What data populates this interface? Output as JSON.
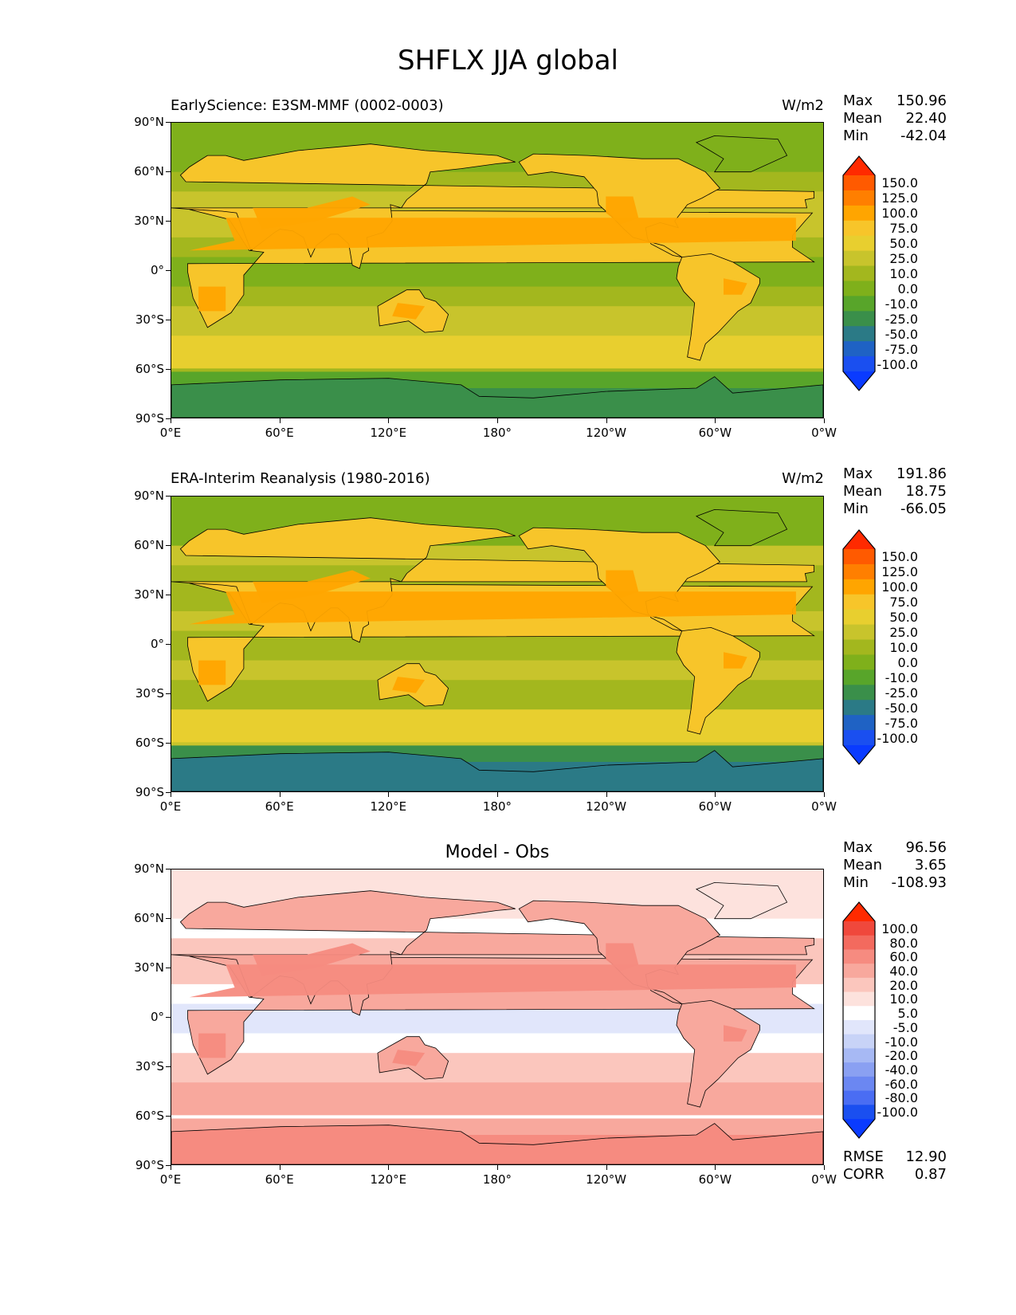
{
  "figure_title": "SHFLX JJA global",
  "panels": [
    {
      "left_title": "EarlyScience: E3SM-MMF (0002-0003)",
      "right_title": "W/m2",
      "center_title": "",
      "stats": [
        {
          "label": "Max",
          "value": "150.96"
        },
        {
          "label": "Mean",
          "value": "22.40"
        },
        {
          "label": "Min",
          "value": "-42.04"
        }
      ],
      "colorbar": {
        "labels": [
          "150.0",
          "125.0",
          "100.0",
          "75.0",
          "50.0",
          "25.0",
          "10.0",
          "0.0",
          "-10.0",
          "-25.0",
          "-50.0",
          "-75.0",
          "-100.0"
        ],
        "colors": [
          "#ff2a00",
          "#ff5a00",
          "#ff7f00",
          "#ffa500",
          "#f7c52a",
          "#e8cf2f",
          "#c8c42c",
          "#a3b71e",
          "#7fb01b",
          "#58a52a",
          "#3a8f4a",
          "#2b7a86",
          "#1f62c4",
          "#1a4ff0",
          "#0a3bff"
        ]
      },
      "map_style": "model"
    },
    {
      "left_title": "ERA-Interim Reanalysis (1980-2016)",
      "right_title": "W/m2",
      "center_title": "",
      "stats": [
        {
          "label": "Max",
          "value": "191.86"
        },
        {
          "label": "Mean",
          "value": "18.75"
        },
        {
          "label": "Min",
          "value": "-66.05"
        }
      ],
      "colorbar": {
        "labels": [
          "150.0",
          "125.0",
          "100.0",
          "75.0",
          "50.0",
          "25.0",
          "10.0",
          "0.0",
          "-10.0",
          "-25.0",
          "-50.0",
          "-75.0",
          "-100.0"
        ],
        "colors": [
          "#ff2a00",
          "#ff5a00",
          "#ff7f00",
          "#ffa500",
          "#f7c52a",
          "#e8cf2f",
          "#c8c42c",
          "#a3b71e",
          "#7fb01b",
          "#58a52a",
          "#3a8f4a",
          "#2b7a86",
          "#1f62c4",
          "#1a4ff0",
          "#0a3bff"
        ]
      },
      "map_style": "obs"
    },
    {
      "left_title": "",
      "right_title": "",
      "center_title": "Model - Obs",
      "stats": [
        {
          "label": "Max",
          "value": "96.56"
        },
        {
          "label": "Mean",
          "value": "3.65"
        },
        {
          "label": "Min",
          "value": "-108.93"
        }
      ],
      "extra_stats": [
        {
          "label": "RMSE",
          "value": "12.90"
        },
        {
          "label": "CORR",
          "value": "0.87"
        }
      ],
      "colorbar": {
        "labels": [
          "100.0",
          "80.0",
          "60.0",
          "40.0",
          "20.0",
          "10.0",
          "5.0",
          "-5.0",
          "-10.0",
          "-20.0",
          "-40.0",
          "-60.0",
          "-80.0",
          "-100.0"
        ],
        "colors": [
          "#ff2a00",
          "#f0483c",
          "#f36a5e",
          "#f68b80",
          "#f8a89d",
          "#fbc6bd",
          "#fde2dd",
          "#ffffff",
          "#e1e6fb",
          "#c8d3f7",
          "#a7b9f4",
          "#8aa0f2",
          "#6b87f2",
          "#4a6df3",
          "#1a4ff0",
          "#0a3bff"
        ]
      },
      "map_style": "diff"
    }
  ],
  "axes": {
    "y_ticks": [
      "90°N",
      "60°N",
      "30°N",
      "0°",
      "30°S",
      "60°S",
      "90°S"
    ],
    "x_ticks": [
      "0°E",
      "60°E",
      "120°E",
      "180°",
      "120°W",
      "60°W",
      "0°W"
    ]
  },
  "chart_data": [
    {
      "type": "heatmap",
      "title": "EarlyScience: E3SM-MMF (0002-0003)",
      "units": "W/m2",
      "xlim": [
        0,
        360
      ],
      "ylim": [
        -90,
        90
      ],
      "x_ticks": [
        "0°E",
        "60°E",
        "120°E",
        "180°",
        "120°W",
        "60°W",
        "0°W"
      ],
      "y_ticks": [
        "90°N",
        "60°N",
        "30°N",
        "0°",
        "30°S",
        "60°S",
        "90°S"
      ],
      "levels": [
        -100,
        -75,
        -50,
        -25,
        -10,
        0,
        10,
        25,
        50,
        75,
        100,
        125,
        150
      ],
      "stats": {
        "max": 150.96,
        "mean": 22.4,
        "min": -42.04
      }
    },
    {
      "type": "heatmap",
      "title": "ERA-Interim Reanalysis (1980-2016)",
      "units": "W/m2",
      "xlim": [
        0,
        360
      ],
      "ylim": [
        -90,
        90
      ],
      "levels": [
        -100,
        -75,
        -50,
        -25,
        -10,
        0,
        10,
        25,
        50,
        75,
        100,
        125,
        150
      ],
      "stats": {
        "max": 191.86,
        "mean": 18.75,
        "min": -66.05
      }
    },
    {
      "type": "heatmap",
      "title": "Model - Obs",
      "xlim": [
        0,
        360
      ],
      "ylim": [
        -90,
        90
      ],
      "levels": [
        -100,
        -80,
        -60,
        -40,
        -20,
        -10,
        -5,
        5,
        10,
        20,
        40,
        60,
        80,
        100
      ],
      "stats": {
        "max": 96.56,
        "mean": 3.65,
        "min": -108.93,
        "rmse": 12.9,
        "corr": 0.87
      }
    }
  ]
}
